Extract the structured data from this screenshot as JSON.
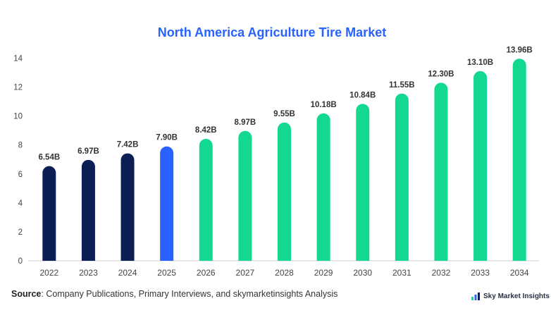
{
  "chart_data": {
    "type": "bar",
    "title": "North America Agriculture Tire Market",
    "categories": [
      "2022",
      "2023",
      "2024",
      "2025",
      "2026",
      "2027",
      "2028",
      "2029",
      "2030",
      "2031",
      "2032",
      "2033",
      "2034"
    ],
    "values": [
      6.54,
      6.97,
      7.42,
      7.9,
      8.42,
      8.97,
      9.55,
      10.18,
      10.84,
      11.55,
      12.3,
      13.1,
      13.96
    ],
    "value_labels": [
      "6.54B",
      "6.97B",
      "7.42B",
      "7.90B",
      "8.42B",
      "8.97B",
      "9.55B",
      "10.18B",
      "10.84B",
      "11.55B",
      "12.30B",
      "13.10B",
      "13.96B"
    ],
    "bar_colors": [
      "#0c1f55",
      "#0c1f55",
      "#0c1f55",
      "#2962ff",
      "#12d98f",
      "#12d98f",
      "#12d98f",
      "#12d98f",
      "#12d98f",
      "#12d98f",
      "#12d98f",
      "#12d98f",
      "#12d98f"
    ],
    "yticks": [
      0,
      2,
      4,
      6,
      8,
      10,
      12,
      14
    ],
    "ylim": [
      0,
      14.8
    ],
    "xlabel": "",
    "ylabel": "",
    "grid": false,
    "title_color": "#2962ff"
  },
  "footer": {
    "source_label": "Source",
    "source_text": ": Company Publications, Primary Interviews, and skymarketinsights Analysis",
    "brand_name": "Sky Market Insights"
  }
}
